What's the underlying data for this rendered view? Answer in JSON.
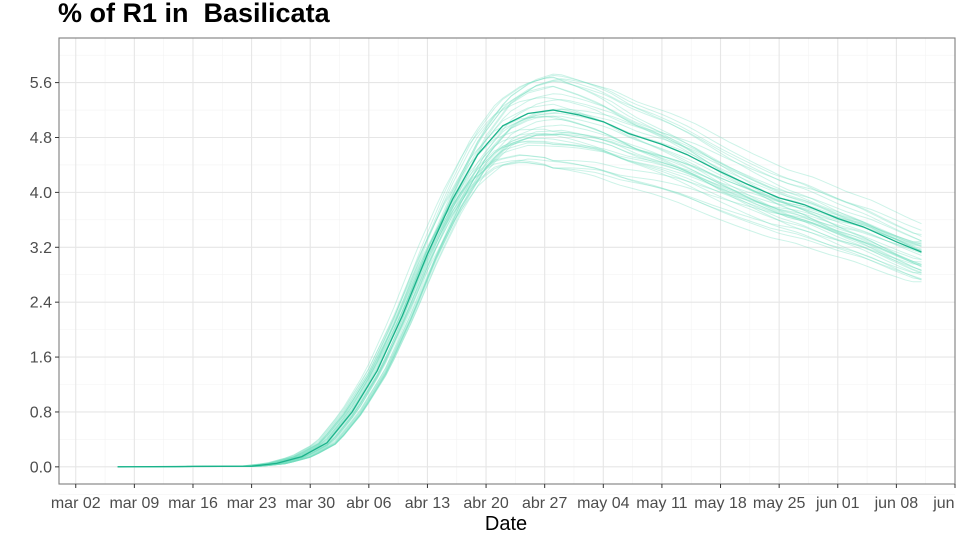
{
  "chart_data": {
    "type": "line",
    "title": "% of R1 in  Basilicata",
    "xlabel": "Date",
    "ylabel": "",
    "x_tick_labels": [
      "mar 02",
      "mar 09",
      "mar 16",
      "mar 23",
      "mar 30",
      "abr 06",
      "abr 13",
      "abr 20",
      "abr 27",
      "may 04",
      "may 11",
      "may 18",
      "may 25",
      "jun 01",
      "jun 08",
      "jun 15"
    ],
    "y_tick_labels": [
      "0.0",
      "0.8",
      "1.6",
      "2.4",
      "3.2",
      "4.0",
      "4.8",
      "5.6"
    ],
    "y_ticks": [
      0,
      0.8,
      1.6,
      2.4,
      3.2,
      4.0,
      4.8,
      5.6
    ],
    "xlim": [
      "2020-02-29",
      "2020-06-15"
    ],
    "ylim": [
      -0.25,
      6.25
    ],
    "x_start": "2020-03-07",
    "x_end": "2020-06-11",
    "grid": true,
    "colors": {
      "main_line": "#1ab28a",
      "ensemble": "#6fdcbc",
      "grid_major": "#e6e6e6",
      "grid_minor": "#f3f3f3",
      "border": "#7f7f7f"
    },
    "series": [
      {
        "role": "median",
        "points": [
          [
            "2020-03-07",
            0.0
          ],
          [
            "2020-03-23",
            0.01
          ],
          [
            "2020-03-26",
            0.05
          ],
          [
            "2020-03-29",
            0.15
          ],
          [
            "2020-04-01",
            0.35
          ],
          [
            "2020-04-04",
            0.8
          ],
          [
            "2020-04-07",
            1.4
          ],
          [
            "2020-04-10",
            2.2
          ],
          [
            "2020-04-13",
            3.1
          ],
          [
            "2020-04-16",
            3.9
          ],
          [
            "2020-04-19",
            4.55
          ],
          [
            "2020-04-22",
            4.97
          ],
          [
            "2020-04-25",
            5.15
          ],
          [
            "2020-04-28",
            5.2
          ],
          [
            "2020-05-01",
            5.13
          ],
          [
            "2020-05-04",
            5.03
          ],
          [
            "2020-05-07",
            4.86
          ],
          [
            "2020-05-11",
            4.7
          ],
          [
            "2020-05-14",
            4.55
          ],
          [
            "2020-05-18",
            4.3
          ],
          [
            "2020-05-21",
            4.13
          ],
          [
            "2020-05-25",
            3.92
          ],
          [
            "2020-05-28",
            3.82
          ],
          [
            "2020-06-01",
            3.62
          ],
          [
            "2020-06-04",
            3.5
          ],
          [
            "2020-06-08",
            3.28
          ],
          [
            "2020-06-11",
            3.13
          ]
        ]
      }
    ],
    "ensemble": {
      "count": 40,
      "peak_range": [
        4.35,
        5.78
      ],
      "end_range": [
        2.65,
        3.5
      ]
    }
  }
}
